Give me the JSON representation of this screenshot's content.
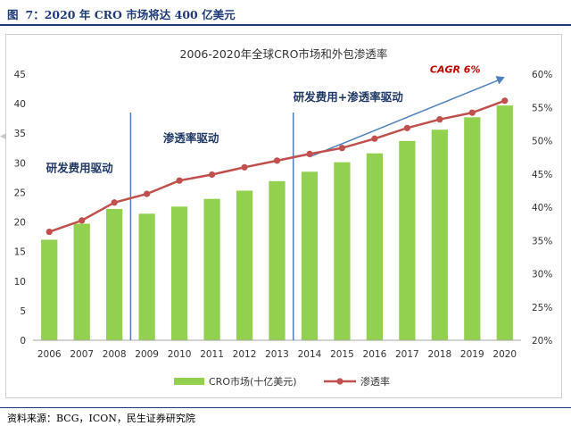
{
  "figure": {
    "label": "图",
    "number": "7：2020 年 CRO 市场将达 400 亿美元",
    "source": "资料来源：BCG，ICON，民生证券研究院"
  },
  "chart_data": {
    "type": "bar+line",
    "title": "2006-2020年全球CRO市场和外包渗透率",
    "categories": [
      "2006",
      "2007",
      "2008",
      "2009",
      "2010",
      "2011",
      "2012",
      "2013",
      "2014",
      "2015",
      "2016",
      "2017",
      "2018",
      "2019",
      "2020"
    ],
    "series": [
      {
        "name": "CRO市场(十亿美元)",
        "type": "bar",
        "axis": "left",
        "color": "#92d050",
        "values": [
          17.0,
          19.7,
          22.2,
          21.4,
          22.6,
          23.9,
          25.3,
          26.9,
          28.5,
          30.1,
          31.6,
          33.7,
          35.6,
          37.7,
          39.7
        ]
      },
      {
        "name": "渗透率",
        "type": "line",
        "axis": "right",
        "color": "#c0504d",
        "values": [
          36.3,
          38.0,
          40.7,
          42.0,
          44.0,
          44.9,
          46.0,
          47.0,
          48.0,
          48.9,
          50.3,
          51.9,
          53.2,
          54.2,
          56.0
        ]
      }
    ],
    "y_left": {
      "min": 0,
      "max": 45,
      "ticks": [
        "0",
        "5",
        "10",
        "15",
        "20",
        "25",
        "30",
        "35",
        "40",
        "45"
      ]
    },
    "y_right": {
      "min": 20,
      "max": 60,
      "ticks": [
        "20%",
        "25%",
        "30%",
        "35%",
        "40%",
        "45%",
        "50%",
        "55%",
        "60%"
      ]
    },
    "grid": false,
    "legend": "bottom",
    "annotations": [
      {
        "text": "研发费用驱动",
        "x": "2006.4",
        "y": 28.5
      },
      {
        "text": "渗透率驱动",
        "x": "2010",
        "y": 33.5
      },
      {
        "text": "研发费用+渗透率驱动",
        "x": "2014",
        "y": 40.5
      },
      {
        "text": "CAGR 6%",
        "x": "2018.2",
        "y": 45.2
      }
    ],
    "dividers_between": [
      [
        "2008",
        "2009"
      ],
      [
        "2013",
        "2014"
      ]
    ],
    "trend_arrow": {
      "from": [
        "2014",
        31
      ],
      "to": [
        "2020",
        44.5
      ]
    }
  }
}
